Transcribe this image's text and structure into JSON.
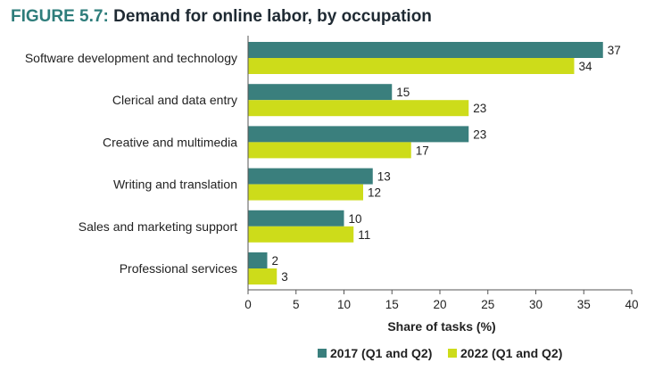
{
  "header": {
    "figure_number": "FIGURE 5.7:",
    "title": "Demand for online labor, by occupation"
  },
  "chart_data": {
    "type": "bar",
    "orientation": "horizontal",
    "categories": [
      "Software development and technology",
      "Clerical and data entry",
      "Creative and multimedia",
      "Writing and translation",
      "Sales and marketing support",
      "Professional services"
    ],
    "series": [
      {
        "name": "2017 (Q1 and Q2)",
        "color": "#3a7f7d",
        "values": [
          37,
          15,
          23,
          13,
          10,
          2
        ]
      },
      {
        "name": "2022 (Q1 and Q2)",
        "color": "#cddc1a",
        "values": [
          34,
          23,
          17,
          12,
          11,
          3
        ]
      }
    ],
    "xlabel": "Share of tasks (%)",
    "xlim": [
      0,
      40
    ],
    "xticks": [
      0,
      5,
      10,
      15,
      20,
      25,
      30,
      35,
      40
    ],
    "grid": false,
    "legend_position": "bottom"
  }
}
